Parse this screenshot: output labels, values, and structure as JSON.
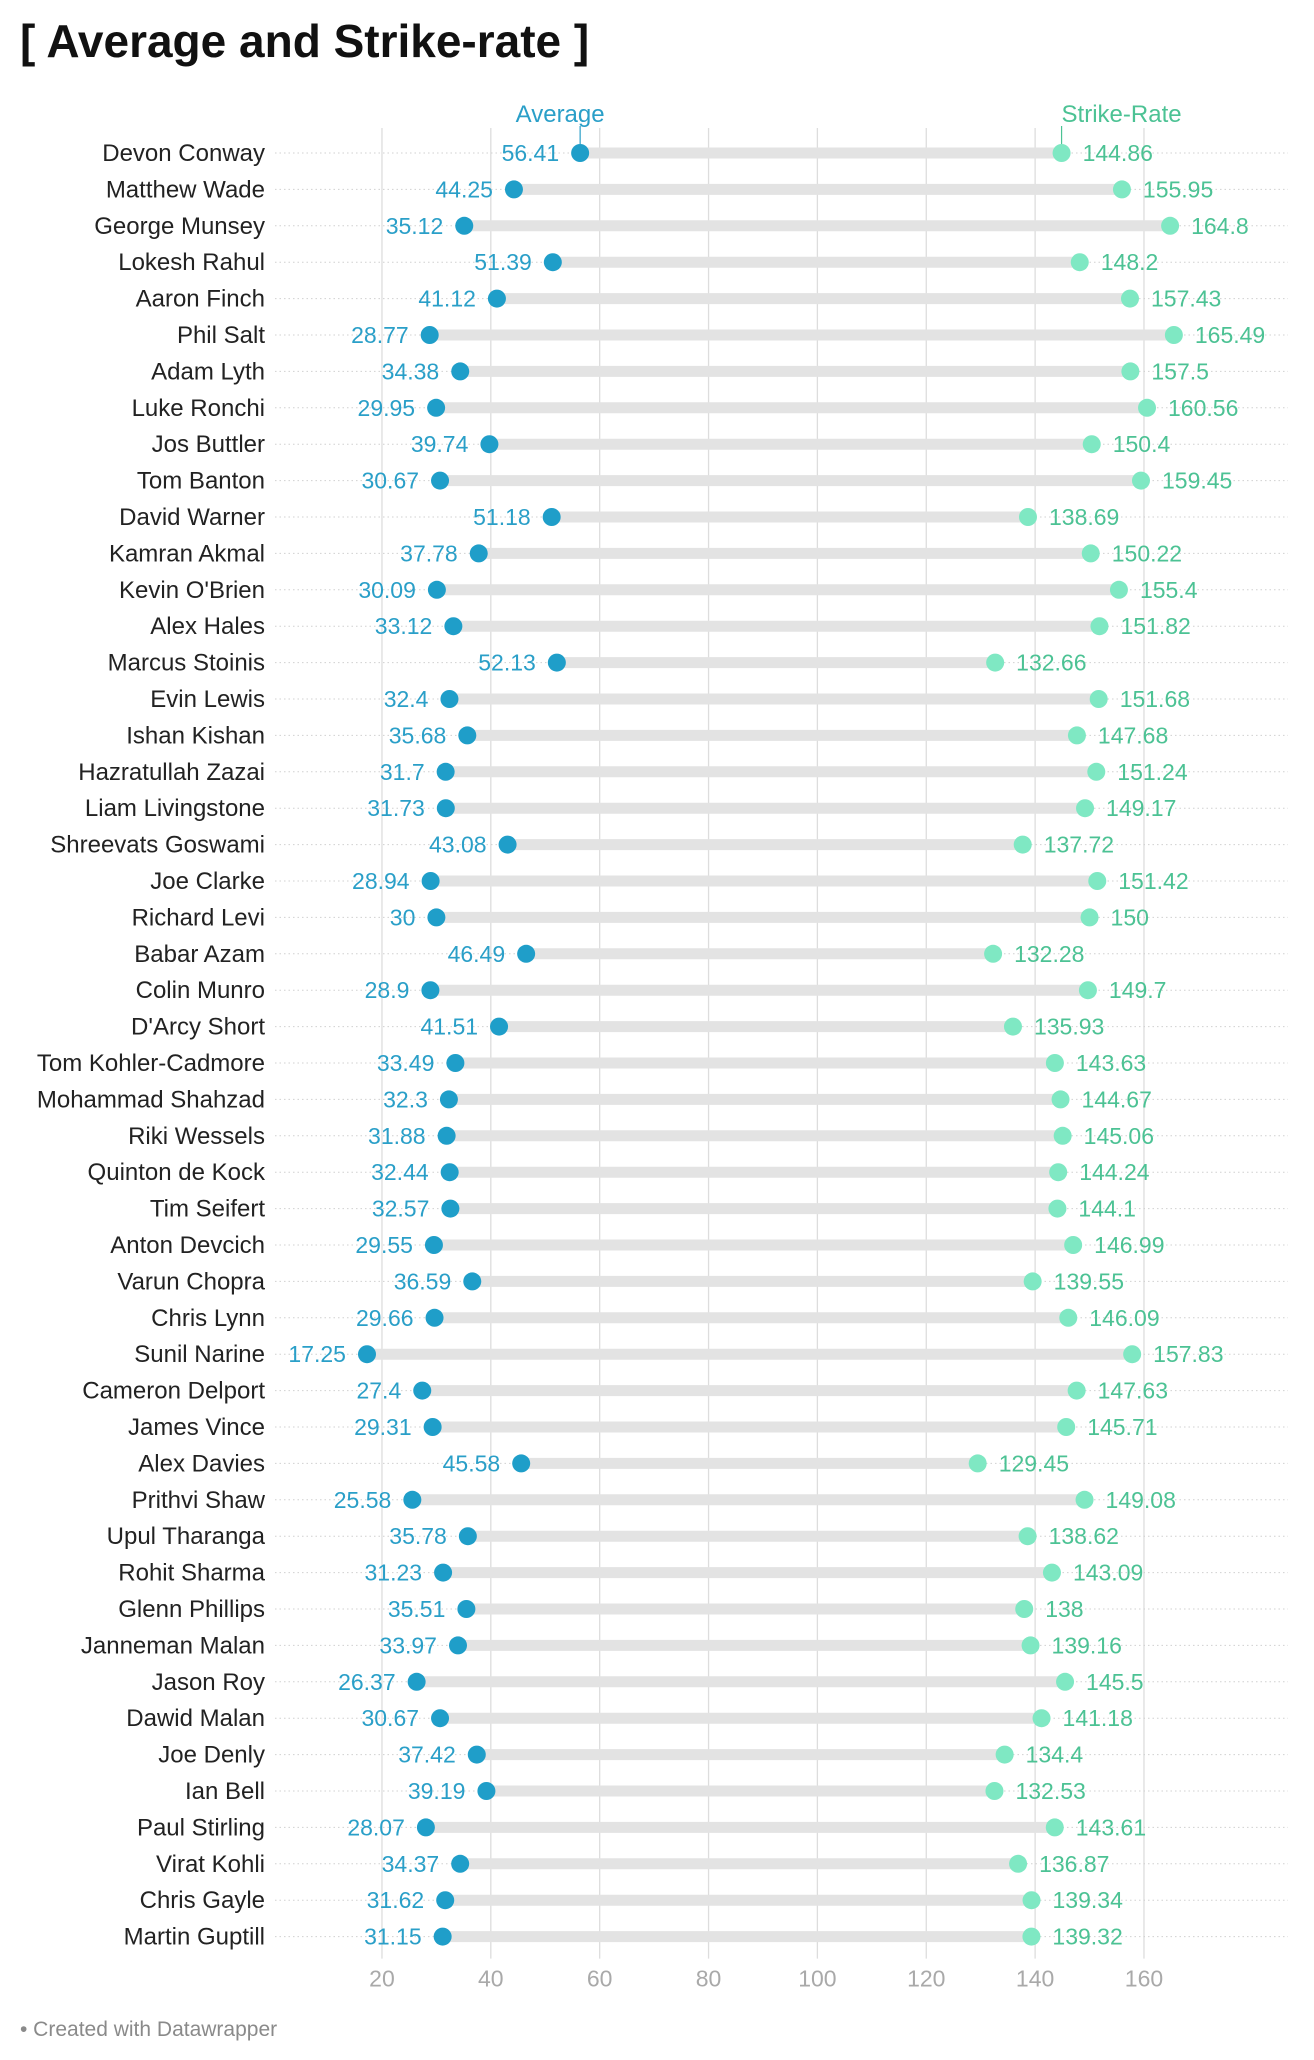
{
  "title": "[ Average and Strike-rate ]",
  "footer": "• Created with Datawrapper",
  "colors": {
    "average": "#1f9ec9",
    "average_text": "#2a9fc8",
    "strike_rate": "#7fe8c3",
    "strike_rate_text": "#4cc294",
    "range_bar": "#e3e3e3",
    "gridline": "#dddddd",
    "row_dots": "#d0d0d0",
    "name_text": "#222222",
    "tick_text": "#a9a9a9"
  },
  "chart_data": {
    "type": "range-plot",
    "title": "[ Average and Strike-rate ]",
    "xlabel": "",
    "ylabel": "",
    "xlim": [
      0,
      170
    ],
    "x_ticks": [
      20,
      40,
      60,
      80,
      100,
      120,
      140,
      160
    ],
    "grid": true,
    "series": [
      {
        "key": "average",
        "name": "Average"
      },
      {
        "key": "strike_rate",
        "name": "Strike-Rate"
      }
    ],
    "rows": [
      {
        "name": "Devon Conway",
        "average": 56.41,
        "strike_rate": 144.86
      },
      {
        "name": "Matthew Wade",
        "average": 44.25,
        "strike_rate": 155.95
      },
      {
        "name": "George Munsey",
        "average": 35.12,
        "strike_rate": 164.8
      },
      {
        "name": "Lokesh Rahul",
        "average": 51.39,
        "strike_rate": 148.2
      },
      {
        "name": "Aaron Finch",
        "average": 41.12,
        "strike_rate": 157.43
      },
      {
        "name": "Phil Salt",
        "average": 28.77,
        "strike_rate": 165.49
      },
      {
        "name": "Adam Lyth",
        "average": 34.38,
        "strike_rate": 157.5
      },
      {
        "name": "Luke Ronchi",
        "average": 29.95,
        "strike_rate": 160.56
      },
      {
        "name": "Jos Buttler",
        "average": 39.74,
        "strike_rate": 150.4
      },
      {
        "name": "Tom Banton",
        "average": 30.67,
        "strike_rate": 159.45
      },
      {
        "name": "David Warner",
        "average": 51.18,
        "strike_rate": 138.69
      },
      {
        "name": "Kamran Akmal",
        "average": 37.78,
        "strike_rate": 150.22
      },
      {
        "name": "Kevin O'Brien",
        "average": 30.09,
        "strike_rate": 155.4
      },
      {
        "name": "Alex Hales",
        "average": 33.12,
        "strike_rate": 151.82
      },
      {
        "name": "Marcus Stoinis",
        "average": 52.13,
        "strike_rate": 132.66
      },
      {
        "name": "Evin Lewis",
        "average": 32.4,
        "strike_rate": 151.68
      },
      {
        "name": "Ishan Kishan",
        "average": 35.68,
        "strike_rate": 147.68
      },
      {
        "name": "Hazratullah Zazai",
        "average": 31.7,
        "strike_rate": 151.24
      },
      {
        "name": "Liam Livingstone",
        "average": 31.73,
        "strike_rate": 149.17
      },
      {
        "name": "Shreevats Goswami",
        "average": 43.08,
        "strike_rate": 137.72
      },
      {
        "name": "Joe Clarke",
        "average": 28.94,
        "strike_rate": 151.42
      },
      {
        "name": "Richard Levi",
        "average": 30,
        "strike_rate": 150
      },
      {
        "name": "Babar Azam",
        "average": 46.49,
        "strike_rate": 132.28
      },
      {
        "name": "Colin Munro",
        "average": 28.9,
        "strike_rate": 149.7
      },
      {
        "name": "D'Arcy Short",
        "average": 41.51,
        "strike_rate": 135.93
      },
      {
        "name": "Tom Kohler-Cadmore",
        "average": 33.49,
        "strike_rate": 143.63
      },
      {
        "name": "Mohammad Shahzad",
        "average": 32.3,
        "strike_rate": 144.67
      },
      {
        "name": "Riki Wessels",
        "average": 31.88,
        "strike_rate": 145.06
      },
      {
        "name": "Quinton de Kock",
        "average": 32.44,
        "strike_rate": 144.24
      },
      {
        "name": "Tim Seifert",
        "average": 32.57,
        "strike_rate": 144.1
      },
      {
        "name": "Anton Devcich",
        "average": 29.55,
        "strike_rate": 146.99
      },
      {
        "name": "Varun Chopra",
        "average": 36.59,
        "strike_rate": 139.55
      },
      {
        "name": "Chris Lynn",
        "average": 29.66,
        "strike_rate": 146.09
      },
      {
        "name": "Sunil Narine",
        "average": 17.25,
        "strike_rate": 157.83
      },
      {
        "name": "Cameron Delport",
        "average": 27.4,
        "strike_rate": 147.63
      },
      {
        "name": "James Vince",
        "average": 29.31,
        "strike_rate": 145.71
      },
      {
        "name": "Alex Davies",
        "average": 45.58,
        "strike_rate": 129.45
      },
      {
        "name": "Prithvi Shaw",
        "average": 25.58,
        "strike_rate": 149.08
      },
      {
        "name": "Upul Tharanga",
        "average": 35.78,
        "strike_rate": 138.62
      },
      {
        "name": "Rohit Sharma",
        "average": 31.23,
        "strike_rate": 143.09
      },
      {
        "name": "Glenn Phillips",
        "average": 35.51,
        "strike_rate": 138
      },
      {
        "name": "Janneman Malan",
        "average": 33.97,
        "strike_rate": 139.16
      },
      {
        "name": "Jason Roy",
        "average": 26.37,
        "strike_rate": 145.5
      },
      {
        "name": "Dawid Malan",
        "average": 30.67,
        "strike_rate": 141.18
      },
      {
        "name": "Joe Denly",
        "average": 37.42,
        "strike_rate": 134.4
      },
      {
        "name": "Ian Bell",
        "average": 39.19,
        "strike_rate": 132.53
      },
      {
        "name": "Paul Stirling",
        "average": 28.07,
        "strike_rate": 143.61
      },
      {
        "name": "Virat Kohli",
        "average": 34.37,
        "strike_rate": 136.87
      },
      {
        "name": "Chris Gayle",
        "average": 31.62,
        "strike_rate": 139.34
      },
      {
        "name": "Martin Guptill",
        "average": 31.15,
        "strike_rate": 139.32
      }
    ]
  }
}
